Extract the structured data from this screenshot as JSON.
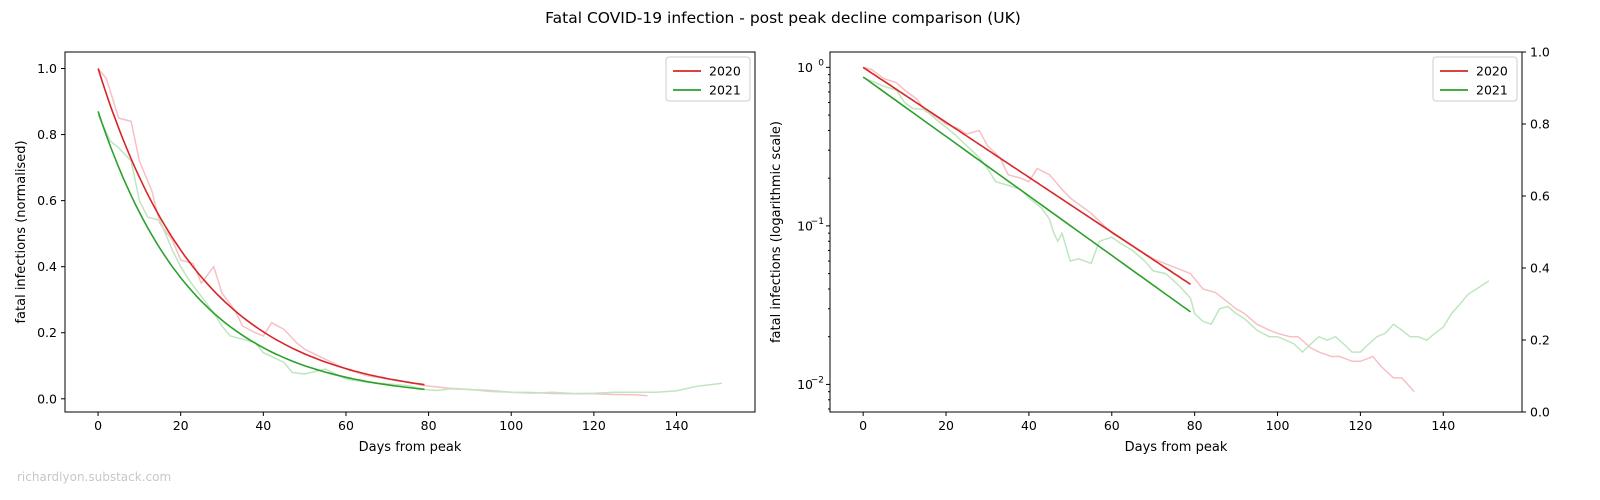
{
  "figure": {
    "title": "Fatal COVID-19 infection - post peak decline comparison (UK)",
    "watermark": "richardlyon.substack.com"
  },
  "colors": {
    "series_2020": "#d62728",
    "series_2021": "#2ca02c",
    "raw_2020": "#f7c0c4",
    "raw_2021": "#bfe6bf"
  },
  "chart_data": [
    {
      "type": "line",
      "xlabel": "Days from peak",
      "ylabel": "fatal infections (normalised)",
      "yscale": "linear",
      "xlim": [
        -8,
        159
      ],
      "ylim": [
        -0.04,
        1.05
      ],
      "xticks": [
        0,
        20,
        40,
        60,
        80,
        100,
        120,
        140
      ],
      "yticks": [
        0.0,
        0.2,
        0.4,
        0.6,
        0.8,
        1.0
      ],
      "ytick_labels": [
        "0.0",
        "0.2",
        "0.4",
        "0.6",
        "0.8",
        "1.0"
      ],
      "legend_position": "top-right",
      "fits": [
        {
          "name": "2020",
          "a": 1.0,
          "k": 0.0399,
          "x_range": [
            0,
            79
          ]
        },
        {
          "name": "2021",
          "a": 0.87,
          "k": 0.0432,
          "x_range": [
            0,
            79
          ]
        }
      ],
      "raw_series": [
        {
          "x": [
            0,
            2,
            5,
            8,
            10,
            13,
            15,
            18,
            20,
            23,
            25,
            28,
            30,
            33,
            35,
            38,
            40,
            42,
            45,
            48,
            50,
            55,
            60,
            65,
            70,
            75,
            79,
            85,
            90,
            95,
            100,
            105,
            110,
            115,
            120,
            125,
            130,
            133
          ],
          "y": [
            1.0,
            0.97,
            0.85,
            0.84,
            0.72,
            0.63,
            0.53,
            0.48,
            0.42,
            0.41,
            0.35,
            0.4,
            0.32,
            0.27,
            0.22,
            0.2,
            0.19,
            0.23,
            0.21,
            0.17,
            0.15,
            0.12,
            0.09,
            0.07,
            0.06,
            0.05,
            0.04,
            0.032,
            0.028,
            0.025,
            0.02,
            0.019,
            0.016,
            0.015,
            0.015,
            0.013,
            0.012,
            0.009
          ]
        },
        {
          "x": [
            0,
            3,
            5,
            8,
            10,
            12,
            15,
            18,
            20,
            22,
            25,
            28,
            30,
            32,
            35,
            38,
            40,
            45,
            47,
            50,
            55,
            60,
            65,
            70,
            75,
            79,
            82,
            85,
            90,
            95,
            100,
            105,
            110,
            115,
            120,
            125,
            130,
            135,
            140,
            145,
            151
          ],
          "y": [
            0.86,
            0.78,
            0.76,
            0.72,
            0.6,
            0.55,
            0.54,
            0.45,
            0.4,
            0.36,
            0.31,
            0.26,
            0.22,
            0.19,
            0.18,
            0.17,
            0.14,
            0.11,
            0.08,
            0.075,
            0.09,
            0.06,
            0.05,
            0.045,
            0.04,
            0.028,
            0.025,
            0.03,
            0.028,
            0.022,
            0.02,
            0.017,
            0.02,
            0.016,
            0.017,
            0.02,
            0.02,
            0.02,
            0.024,
            0.038,
            0.047
          ]
        }
      ]
    },
    {
      "type": "line",
      "xlabel": "Days from peak",
      "ylabel": "fatal infections (logarithmic scale)",
      "yscale": "log",
      "xlim": [
        -8,
        159
      ],
      "ylim": [
        0.0067,
        1.25
      ],
      "xticks": [
        0,
        20,
        40,
        60,
        80,
        100,
        120,
        140
      ],
      "yticks": [
        0.01,
        0.1,
        1.0
      ],
      "ytick_labels": [
        "10",
        "10",
        "10"
      ],
      "ytick_exponents": [
        "−2",
        "−1",
        "0"
      ],
      "right_axis_ylim": [
        0.0,
        1.0
      ],
      "right_axis_ticks": [
        "0.0",
        "0.2",
        "0.4",
        "0.6",
        "0.8",
        "1.0"
      ],
      "legend_position": "top-right",
      "fits": [
        {
          "name": "2020",
          "a": 1.0,
          "k": 0.0399,
          "x_range": [
            0,
            79
          ]
        },
        {
          "name": "2021",
          "a": 0.87,
          "k": 0.0432,
          "x_range": [
            0,
            79
          ]
        }
      ],
      "raw_series": [
        {
          "x": [
            0,
            2,
            5,
            8,
            10,
            13,
            15,
            18,
            20,
            23,
            25,
            28,
            30,
            33,
            35,
            38,
            40,
            42,
            45,
            48,
            50,
            55,
            60,
            65,
            70,
            75,
            79,
            82,
            85,
            88,
            90,
            92,
            95,
            98,
            100,
            103,
            105,
            108,
            110,
            113,
            115,
            118,
            120,
            123,
            125,
            128,
            130,
            133
          ],
          "y": [
            1.0,
            0.97,
            0.85,
            0.8,
            0.72,
            0.63,
            0.53,
            0.48,
            0.44,
            0.41,
            0.38,
            0.4,
            0.32,
            0.27,
            0.21,
            0.2,
            0.19,
            0.23,
            0.21,
            0.17,
            0.15,
            0.12,
            0.09,
            0.075,
            0.062,
            0.055,
            0.05,
            0.04,
            0.038,
            0.033,
            0.03,
            0.028,
            0.024,
            0.022,
            0.021,
            0.02,
            0.02,
            0.017,
            0.016,
            0.015,
            0.015,
            0.014,
            0.014,
            0.015,
            0.013,
            0.011,
            0.011,
            0.009
          ]
        },
        {
          "x": [
            0,
            3,
            5,
            8,
            10,
            12,
            15,
            18,
            20,
            22,
            25,
            28,
            30,
            32,
            35,
            38,
            40,
            43,
            45,
            46,
            47,
            48,
            50,
            52,
            55,
            57,
            60,
            62,
            65,
            68,
            70,
            73,
            75,
            77,
            79,
            80,
            82,
            84,
            86,
            88,
            90,
            92,
            95,
            98,
            100,
            102,
            104,
            106,
            108,
            110,
            112,
            114,
            116,
            118,
            120,
            122,
            124,
            126,
            128,
            130,
            132,
            134,
            136,
            138,
            140,
            142,
            144,
            146,
            148,
            151
          ],
          "y": [
            0.86,
            0.8,
            0.76,
            0.72,
            0.6,
            0.55,
            0.54,
            0.46,
            0.42,
            0.38,
            0.32,
            0.27,
            0.23,
            0.19,
            0.18,
            0.17,
            0.15,
            0.13,
            0.11,
            0.09,
            0.08,
            0.09,
            0.06,
            0.062,
            0.058,
            0.08,
            0.085,
            0.078,
            0.07,
            0.06,
            0.052,
            0.05,
            0.045,
            0.04,
            0.035,
            0.028,
            0.025,
            0.024,
            0.03,
            0.031,
            0.028,
            0.026,
            0.022,
            0.02,
            0.02,
            0.019,
            0.018,
            0.016,
            0.018,
            0.02,
            0.019,
            0.02,
            0.018,
            0.016,
            0.016,
            0.018,
            0.02,
            0.021,
            0.024,
            0.022,
            0.02,
            0.02,
            0.019,
            0.021,
            0.023,
            0.028,
            0.032,
            0.037,
            0.04,
            0.045
          ]
        }
      ]
    }
  ]
}
